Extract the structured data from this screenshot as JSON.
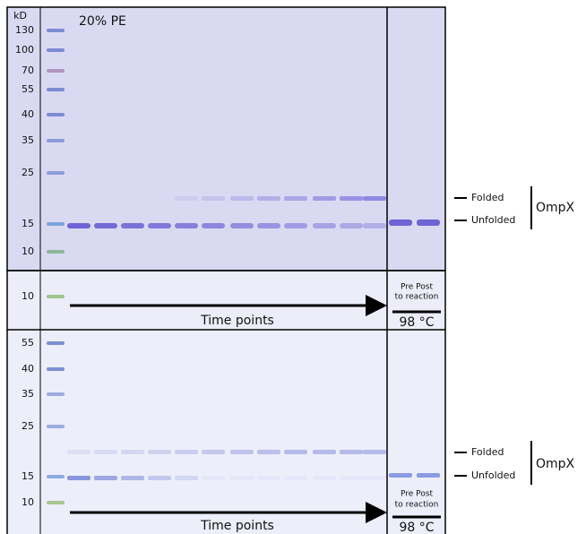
{
  "top_panel": {
    "unit": "kD",
    "gel_label": "20% PE",
    "ladder": [
      "130",
      "100",
      "70",
      "55",
      "40",
      "35",
      "25",
      "15",
      "10"
    ],
    "band_labels": {
      "folded": "Folded",
      "unfolded": "Unfolded",
      "protein": "OmpX"
    }
  },
  "middle_strip": {
    "ladder": [
      "10"
    ],
    "arrow_label": "Time points",
    "controls": {
      "columns": "Pre Post",
      "caption": "to reaction",
      "temperature": "98 °C"
    }
  },
  "bottom_panel": {
    "ladder": [
      "55",
      "40",
      "35",
      "25",
      "15",
      "10"
    ],
    "band_labels": {
      "folded": "Folded",
      "unfolded": "Unfolded",
      "protein": "OmpX"
    },
    "arrow_label": "Time points",
    "controls": {
      "columns": "Pre Post",
      "caption": "to reaction",
      "temperature": "98 °C"
    }
  }
}
